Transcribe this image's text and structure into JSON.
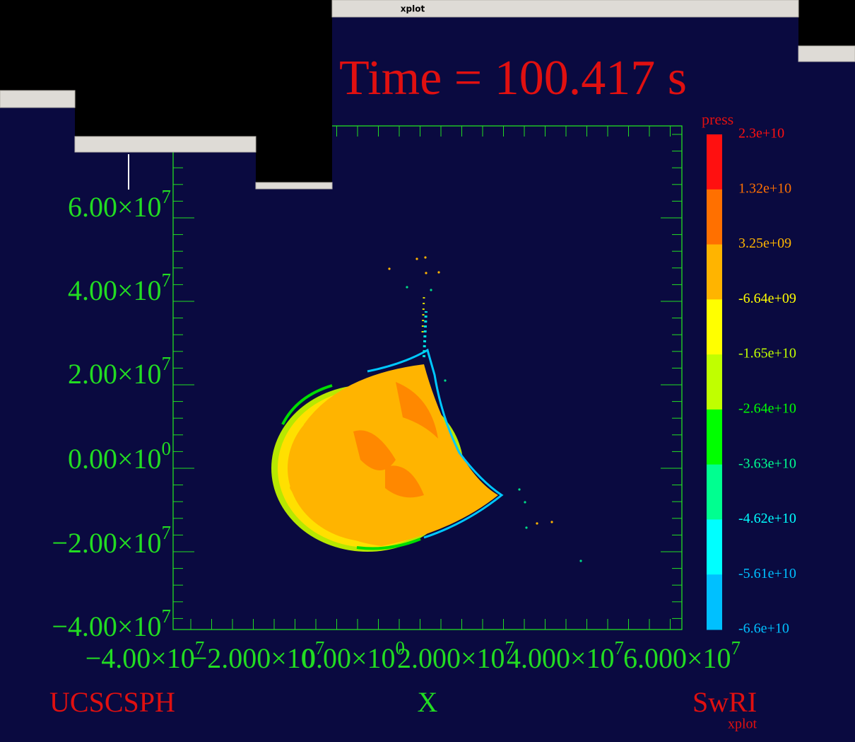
{
  "window": {
    "title": "xplot"
  },
  "plot": {
    "title": "Time = 100.417 s",
    "y_labels": [
      {
        "mantissa": "6.00×10",
        "exponent": "7"
      },
      {
        "mantissa": "4.00×10",
        "exponent": "7"
      },
      {
        "mantissa": "2.00×10",
        "exponent": "7"
      },
      {
        "mantissa": "0.00×10",
        "exponent": "0"
      },
      {
        "mantissa": "−2.00×10",
        "exponent": "7"
      },
      {
        "mantissa": "−4.00×10",
        "exponent": "7"
      }
    ],
    "x_labels": [
      {
        "mantissa": "−4.00×10",
        "exponent": "7"
      },
      {
        "mantissa": "−2.000×10",
        "exponent": "7"
      },
      {
        "mantissa": "0.00×10",
        "exponent": "0"
      },
      {
        "mantissa": "2.000×10",
        "exponent": "7"
      },
      {
        "mantissa": "4.000×10",
        "exponent": "7"
      },
      {
        "mantissa": "6.000×10",
        "exponent": "7"
      }
    ],
    "x_axis_label": "X",
    "colorbar": {
      "title": "press",
      "labels": [
        "2.3e+10",
        "1.32e+10",
        "3.25e+09",
        "-6.64e+09",
        "-1.65e+10",
        "-2.64e+10",
        "-3.63e+10",
        "-4.62e+10",
        "-5.61e+10",
        "-6.6e+10"
      ]
    },
    "footer": {
      "left": "UCSCSPH",
      "right": "SwRI",
      "right_note": "xplot"
    }
  }
}
